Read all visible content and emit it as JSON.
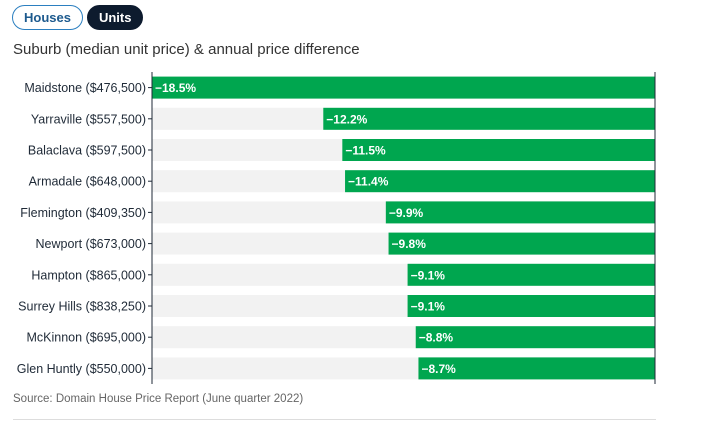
{
  "tabs": [
    {
      "label": "Houses",
      "active": false
    },
    {
      "label": "Units",
      "active": true
    }
  ],
  "subtitle": "Suburb (median unit price) & annual price difference",
  "source": "Source: Domain House Price Report (June quarter 2022)",
  "colors": {
    "bar": "#00a64f",
    "track": "#f2f2f2",
    "axis": "#1f2a37"
  },
  "chart_data": {
    "type": "bar",
    "orientation": "horizontal",
    "title": "",
    "xlabel": "",
    "ylabel": "",
    "xlim": [
      -18.5,
      0
    ],
    "categories": [
      "Maidstone ($476,500)",
      "Yarraville ($557,500)",
      "Balaclava ($597,500)",
      "Armadale ($648,000)",
      "Flemington ($409,350)",
      "Newport ($673,000)",
      "Hampton ($865,000)",
      "Surrey Hills ($838,250)",
      "McKinnon ($695,000)",
      "Glen Huntly ($550,000)"
    ],
    "values": [
      -18.5,
      -12.2,
      -11.5,
      -11.4,
      -9.9,
      -9.8,
      -9.1,
      -9.1,
      -8.8,
      -8.7
    ],
    "data_labels": [
      "−18.5%",
      "−12.2%",
      "−11.5%",
      "−11.4%",
      "−9.9%",
      "−9.8%",
      "−9.1%",
      "−9.1%",
      "−8.8%",
      "−8.7%"
    ]
  }
}
